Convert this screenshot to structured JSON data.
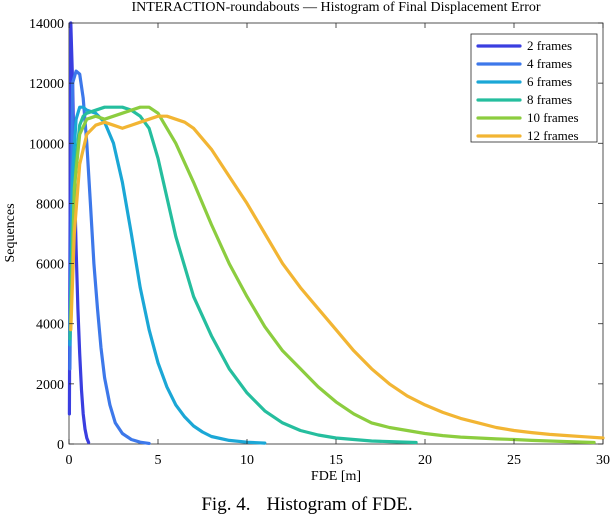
{
  "caption": {
    "label": "Fig. 4.",
    "text": "Histogram of FDE."
  },
  "chart_data": {
    "type": "line",
    "title": "INTERACTION-roundabouts — Histogram of Final Displacement Error",
    "xlabel": "FDE [m]",
    "ylabel": "Sequences",
    "xlim": [
      0,
      30
    ],
    "ylim": [
      0,
      14000
    ],
    "xticks": [
      0,
      5,
      10,
      15,
      20,
      25,
      30
    ],
    "yticks": [
      0,
      2000,
      4000,
      6000,
      8000,
      10000,
      12000,
      14000
    ],
    "grid": false,
    "legend": "top-right",
    "series": [
      {
        "name": "2 frames",
        "color": "#3a3ee0",
        "x": [
          0.02,
          0.1,
          0.2,
          0.3,
          0.4,
          0.5,
          0.6,
          0.7,
          0.8,
          0.9,
          1.0,
          1.1
        ],
        "y": [
          1000,
          14000,
          12000,
          9000,
          6500,
          4500,
          3000,
          1800,
          1000,
          500,
          200,
          50
        ]
      },
      {
        "name": "4 frames",
        "color": "#3d78ea",
        "x": [
          0.05,
          0.2,
          0.4,
          0.6,
          0.8,
          1.0,
          1.2,
          1.4,
          1.6,
          1.8,
          2.0,
          2.3,
          2.6,
          3.0,
          3.5,
          4.0,
          4.5
        ],
        "y": [
          2500,
          12000,
          12400,
          12300,
          11500,
          10000,
          8000,
          6000,
          4500,
          3200,
          2200,
          1300,
          700,
          350,
          150,
          60,
          20
        ]
      },
      {
        "name": "6 frames",
        "color": "#1ba7d6",
        "x": [
          0.05,
          0.2,
          0.4,
          0.6,
          0.8,
          1.0,
          1.5,
          2.0,
          2.5,
          3.0,
          3.5,
          4.0,
          4.5,
          5.0,
          5.5,
          6.0,
          6.5,
          7.0,
          7.5,
          8.0,
          9.0,
          10.0,
          11.0
        ],
        "y": [
          3300,
          9000,
          10800,
          11200,
          11200,
          11100,
          11000,
          10700,
          10000,
          8700,
          7000,
          5200,
          3800,
          2700,
          1900,
          1300,
          900,
          600,
          400,
          250,
          120,
          60,
          30
        ]
      },
      {
        "name": "8 frames",
        "color": "#25be9e",
        "x": [
          0.05,
          0.2,
          0.4,
          0.6,
          0.8,
          1.0,
          1.5,
          2.0,
          2.5,
          3.0,
          3.5,
          4.0,
          4.5,
          5.0,
          5.5,
          6.0,
          7.0,
          8.0,
          9.0,
          10.0,
          11.0,
          12.0,
          13.0,
          14.0,
          15.0,
          16.0,
          17.0,
          18.0,
          19.5
        ],
        "y": [
          3500,
          7000,
          9500,
          10600,
          10900,
          11000,
          11100,
          11200,
          11200,
          11200,
          11100,
          10900,
          10500,
          9500,
          8200,
          6900,
          4900,
          3600,
          2500,
          1700,
          1100,
          700,
          450,
          300,
          200,
          150,
          100,
          80,
          50
        ]
      },
      {
        "name": "10 frames",
        "color": "#8ccd3f",
        "x": [
          0.1,
          0.3,
          0.6,
          1.0,
          1.5,
          2.0,
          2.5,
          3.0,
          3.5,
          4.0,
          4.5,
          5.0,
          6.0,
          7.0,
          8.0,
          9.0,
          10.0,
          11.0,
          12.0,
          13.0,
          14.0,
          15.0,
          16.0,
          17.0,
          18.0,
          19.0,
          20.0,
          21.0,
          22.0,
          23.0,
          24.0,
          25.0,
          26.0,
          27.0,
          28.0,
          29.5
        ],
        "y": [
          4000,
          8500,
          10300,
          10800,
          10900,
          10800,
          10900,
          11000,
          11100,
          11200,
          11200,
          11000,
          10000,
          8700,
          7300,
          6000,
          4900,
          3900,
          3100,
          2500,
          1900,
          1400,
          1000,
          700,
          550,
          450,
          350,
          280,
          230,
          200,
          170,
          150,
          120,
          100,
          80,
          50
        ]
      },
      {
        "name": "12 frames",
        "color": "#f2b533",
        "x": [
          0.1,
          0.3,
          0.6,
          1.0,
          1.5,
          2.0,
          2.5,
          3.0,
          3.5,
          4.0,
          4.5,
          5.0,
          5.5,
          6.0,
          6.5,
          7.0,
          8.0,
          9.0,
          10.0,
          11.0,
          12.0,
          13.0,
          14.0,
          15.0,
          16.0,
          17.0,
          18.0,
          19.0,
          20.0,
          21.0,
          22.0,
          23.0,
          24.0,
          25.0,
          26.0,
          27.0,
          28.0,
          29.0,
          30.0
        ],
        "y": [
          3800,
          7000,
          9300,
          10300,
          10600,
          10700,
          10600,
          10500,
          10600,
          10700,
          10800,
          10900,
          10900,
          10800,
          10700,
          10500,
          9800,
          8900,
          8000,
          7000,
          6000,
          5200,
          4500,
          3800,
          3100,
          2500,
          2000,
          1600,
          1300,
          1050,
          850,
          700,
          550,
          450,
          380,
          320,
          280,
          240,
          200
        ]
      }
    ]
  }
}
